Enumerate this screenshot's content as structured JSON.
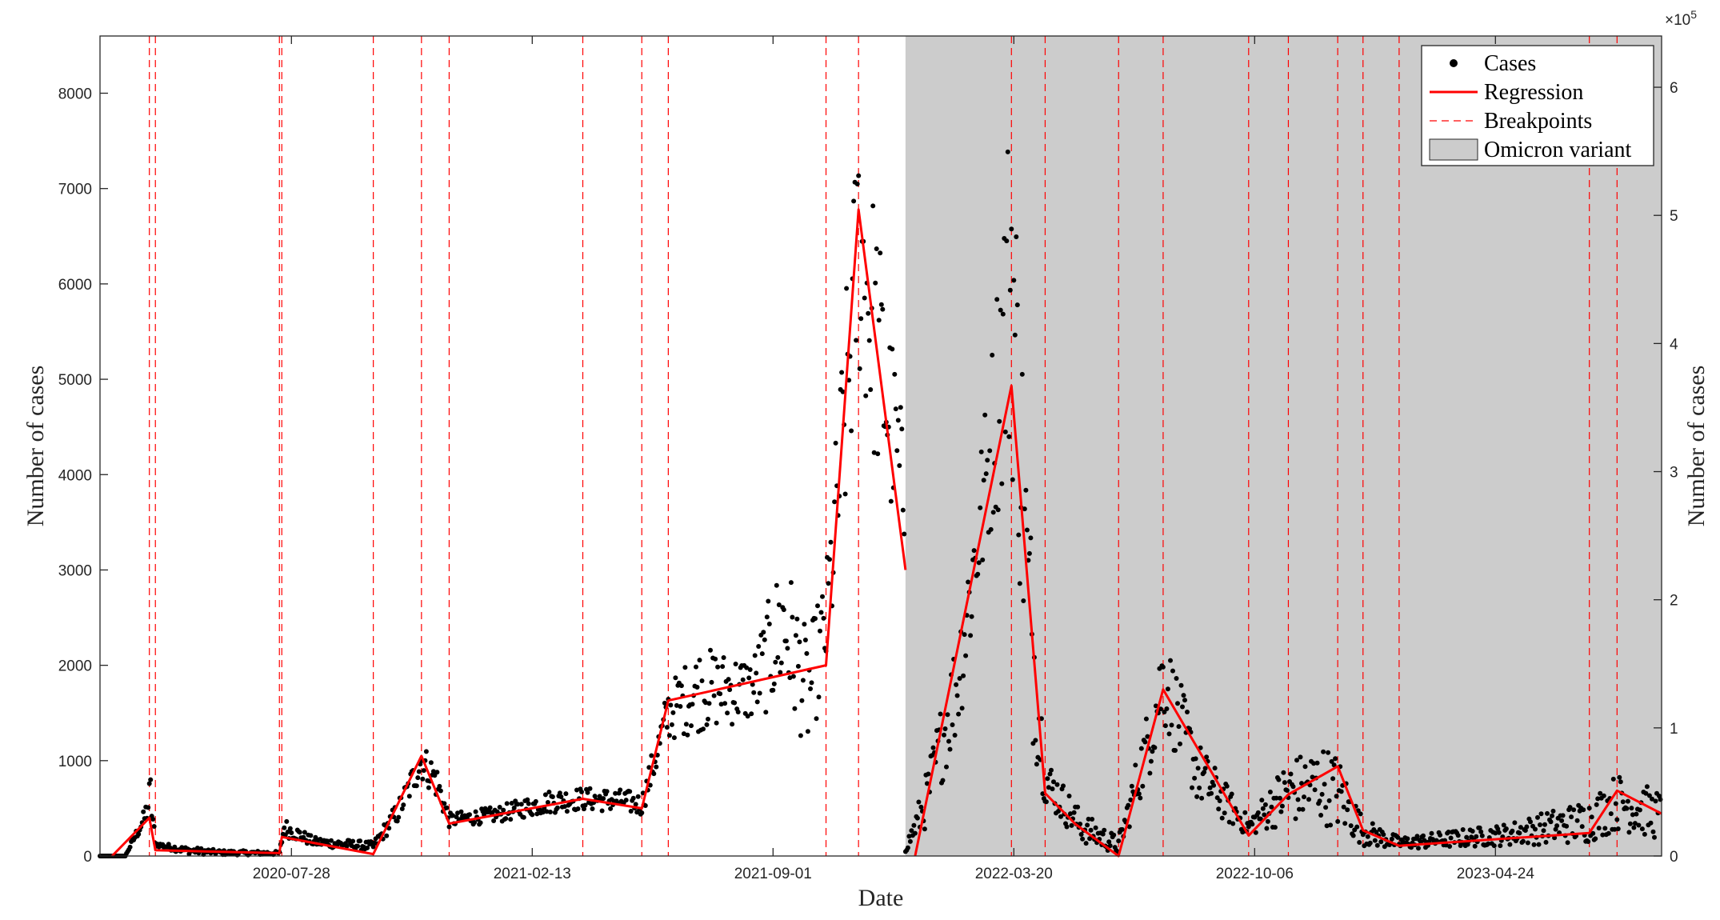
{
  "chart_data": {
    "type": "scatter",
    "title": "",
    "xlabel": "Date",
    "ylabel_left": "Number of cases",
    "ylabel_right": "Number of cases",
    "x_range": [
      "2020-02-20",
      "2023-09-09"
    ],
    "x_ticks": [
      "2020-07-28",
      "2021-02-13",
      "2021-09-01",
      "2022-03-20",
      "2022-10-06",
      "2023-04-24"
    ],
    "y_left": {
      "range": [
        0,
        8600
      ],
      "ticks": [
        0,
        1000,
        2000,
        3000,
        4000,
        5000,
        6000,
        7000,
        8000
      ],
      "tick_labels": [
        "0",
        "1000",
        "2000",
        "3000",
        "4000",
        "5000",
        "6000",
        "7000",
        "8000"
      ]
    },
    "y_right": {
      "range": [
        0,
        640000
      ],
      "ticks": [
        0,
        100000,
        200000,
        300000,
        400000,
        500000,
        600000
      ],
      "tick_labels": [
        "0",
        "1",
        "2",
        "3",
        "4",
        "5",
        "6"
      ],
      "exponent_label": "×10",
      "exponent_power": "5"
    },
    "omicron_start": "2021-12-20",
    "legend": {
      "position": "top-right",
      "entries": [
        {
          "label": "Cases",
          "kind": "marker",
          "color": "#000000"
        },
        {
          "label": "Regression",
          "kind": "line",
          "color": "#ff0000"
        },
        {
          "label": "Breakpoints",
          "kind": "dashed",
          "color": "#ff0000"
        },
        {
          "label": "Omicron variant",
          "kind": "patch",
          "color": "#cccccc"
        }
      ]
    },
    "breakpoints": [
      "2020-04-01",
      "2020-04-06",
      "2020-07-18",
      "2020-07-20",
      "2020-10-04",
      "2020-11-13",
      "2020-12-06",
      "2021-03-27",
      "2021-05-15",
      "2021-06-06",
      "2021-10-15",
      "2021-11-11",
      "2022-03-18",
      "2022-04-15",
      "2022-06-15",
      "2022-07-22",
      "2022-10-01",
      "2022-11-03",
      "2022-12-14",
      "2023-01-04",
      "2023-02-03",
      "2023-07-11",
      "2023-08-03"
    ],
    "series": [
      {
        "name": "Regression",
        "axis": "left",
        "color": "#ff0000",
        "points": [
          [
            "2020-03-01",
            0
          ],
          [
            "2020-04-01",
            400
          ],
          [
            "2020-04-06",
            60
          ],
          [
            "2020-07-18",
            30
          ],
          [
            "2020-07-20",
            200
          ],
          [
            "2020-10-04",
            20
          ],
          [
            "2020-11-13",
            1050
          ],
          [
            "2020-12-06",
            340
          ],
          [
            "2021-03-27",
            600
          ],
          [
            "2021-05-15",
            500
          ],
          [
            "2021-06-06",
            1630
          ],
          [
            "2021-10-15",
            2000
          ],
          [
            "2021-11-11",
            6780
          ],
          [
            "2021-12-20",
            3000
          ]
        ]
      },
      {
        "name": "Regression",
        "axis": "right",
        "color": "#ff0000",
        "points": [
          [
            "2021-12-28",
            0
          ],
          [
            "2022-03-18",
            367000
          ],
          [
            "2022-04-15",
            49000
          ],
          [
            "2022-05-10",
            25000
          ],
          [
            "2022-06-15",
            0
          ],
          [
            "2022-07-22",
            130000
          ],
          [
            "2022-10-01",
            16000
          ],
          [
            "2022-11-03",
            48000
          ],
          [
            "2022-12-14",
            70000
          ],
          [
            "2023-01-04",
            20000
          ],
          [
            "2023-02-03",
            8000
          ],
          [
            "2023-07-11",
            18000
          ],
          [
            "2023-08-03",
            51000
          ],
          [
            "2023-09-09",
            33000
          ]
        ]
      }
    ],
    "scatter_envelopes": [
      {
        "name": "Cases",
        "axis": "left",
        "points": [
          [
            "2020-02-20",
            0,
            0
          ],
          [
            "2020-03-12",
            0,
            0
          ],
          [
            "2020-03-28",
            300,
            500
          ],
          [
            "2020-04-02",
            350,
            900
          ],
          [
            "2020-04-06",
            100,
            150
          ],
          [
            "2020-05-01",
            20,
            100
          ],
          [
            "2020-06-01",
            10,
            60
          ],
          [
            "2020-07-18",
            10,
            50
          ],
          [
            "2020-07-22",
            200,
            400
          ],
          [
            "2020-08-15",
            100,
            200
          ],
          [
            "2020-10-04",
            50,
            150
          ],
          [
            "2020-10-25",
            350,
            600
          ],
          [
            "2020-11-13",
            800,
            1200
          ],
          [
            "2020-11-25",
            600,
            1000
          ],
          [
            "2020-12-06",
            300,
            450
          ],
          [
            "2021-01-15",
            350,
            520
          ],
          [
            "2021-03-01",
            450,
            700
          ],
          [
            "2021-03-27",
            480,
            720
          ],
          [
            "2021-05-01",
            450,
            700
          ],
          [
            "2021-05-15",
            420,
            650
          ],
          [
            "2021-06-06",
            1200,
            1800
          ],
          [
            "2021-07-01",
            1300,
            2200
          ],
          [
            "2021-08-15",
            1400,
            2100
          ],
          [
            "2021-09-10",
            1600,
            3250
          ],
          [
            "2021-09-30",
            1100,
            2300
          ],
          [
            "2021-10-15",
            1800,
            3000
          ],
          [
            "2021-11-01",
            3500,
            6000
          ],
          [
            "2021-11-11",
            5000,
            7850
          ],
          [
            "2021-11-25",
            4000,
            6900
          ],
          [
            "2021-12-20",
            3000,
            4350
          ]
        ]
      },
      {
        "name": "Cases",
        "axis": "right",
        "points": [
          [
            "2021-12-20",
            3000,
            8000
          ],
          [
            "2022-01-05",
            20000,
            60000
          ],
          [
            "2022-02-01",
            90000,
            180000
          ],
          [
            "2022-03-01",
            250000,
            390000
          ],
          [
            "2022-03-18",
            300000,
            620000
          ],
          [
            "2022-04-01",
            100000,
            300000
          ],
          [
            "2022-04-15",
            40000,
            80000
          ],
          [
            "2022-05-15",
            10000,
            35000
          ],
          [
            "2022-06-15",
            1000,
            15000
          ],
          [
            "2022-07-10",
            60000,
            120000
          ],
          [
            "2022-07-22",
            100000,
            180000
          ],
          [
            "2022-08-20",
            40000,
            90000
          ],
          [
            "2022-10-01",
            15000,
            30000
          ],
          [
            "2022-11-01",
            25000,
            75000
          ],
          [
            "2022-12-01",
            25000,
            88000
          ],
          [
            "2022-12-14",
            20000,
            80000
          ],
          [
            "2023-01-04",
            8000,
            30000
          ],
          [
            "2023-02-03",
            5000,
            15000
          ],
          [
            "2023-05-01",
            8000,
            25000
          ],
          [
            "2023-07-11",
            10000,
            45000
          ],
          [
            "2023-08-03",
            20000,
            65000
          ],
          [
            "2023-09-09",
            12000,
            50000
          ]
        ]
      }
    ]
  }
}
